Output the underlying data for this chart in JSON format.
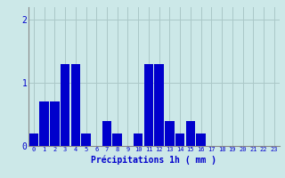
{
  "values": [
    0.2,
    0.7,
    0.7,
    1.3,
    1.3,
    0.2,
    0.0,
    0.4,
    0.2,
    0.0,
    0.2,
    1.3,
    1.3,
    0.4,
    0.2,
    0.4,
    0.2,
    0.0,
    0.0,
    0.0,
    0.0,
    0.0,
    0.0,
    0.0
  ],
  "bar_color": "#0000cc",
  "background_color": "#cce8e8",
  "grid_color": "#aac8c8",
  "xlabel": "Précipitations 1h ( mm )",
  "xlabel_color": "#0000cc",
  "tick_color": "#0000cc",
  "axis_color": "#888888",
  "yticks": [
    0,
    1,
    2
  ],
  "ylim": [
    0,
    2.2
  ],
  "xlim": [
    -0.5,
    23.5
  ]
}
